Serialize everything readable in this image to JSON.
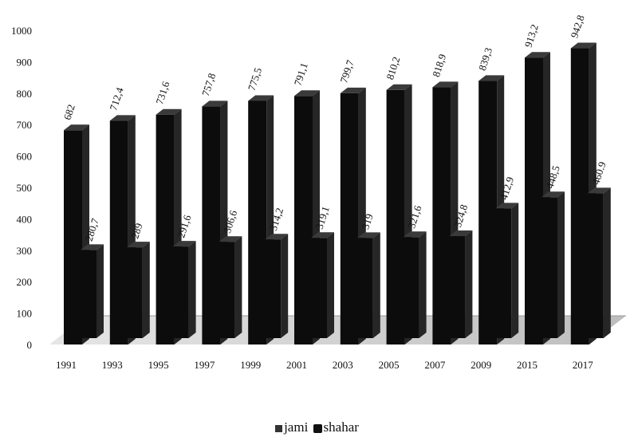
{
  "chart_data": {
    "type": "bar",
    "categories": [
      "1991",
      "1993",
      "1995",
      "1997",
      "1999",
      "2001",
      "2003",
      "2005",
      "2007",
      "2009",
      "2015",
      "2017"
    ],
    "series": [
      {
        "name": "jami",
        "values": [
          682,
          712.4,
          731.6,
          757.8,
          775.5,
          791.1,
          799.7,
          810.2,
          818.9,
          839.3,
          913.2,
          942.8
        ],
        "labels": [
          "682",
          "712,4",
          "731,6",
          "757,8",
          "775,5",
          "791,1",
          "799,7",
          "810,2",
          "818,9",
          "839,3",
          "913,2",
          "942,8"
        ]
      },
      {
        "name": "shahar",
        "values": [
          280.7,
          289,
          291.6,
          306.6,
          314.2,
          319.1,
          319,
          321.6,
          324.8,
          412.9,
          448.5,
          460.9
        ],
        "labels": [
          "280,7",
          "289",
          "291,6",
          "306,6",
          "314,2",
          "319,1",
          "319",
          "321,6",
          "324,8",
          "412,9",
          "448,5",
          "460.9"
        ]
      }
    ],
    "y_ticks": [
      "0",
      "100",
      "200",
      "300",
      "400",
      "500",
      "600",
      "700",
      "800",
      "900",
      "1000"
    ],
    "ylim": [
      0,
      1000
    ],
    "title": "",
    "xlabel": "",
    "ylabel": "",
    "grid": false,
    "legend_position": "bottom-center",
    "style": "3d-column"
  },
  "colors": {
    "bar_front": "#0c0c0c",
    "bar_side": "#262626",
    "bar_top": "#3a3a3a",
    "floor": "#cfcfcf"
  }
}
